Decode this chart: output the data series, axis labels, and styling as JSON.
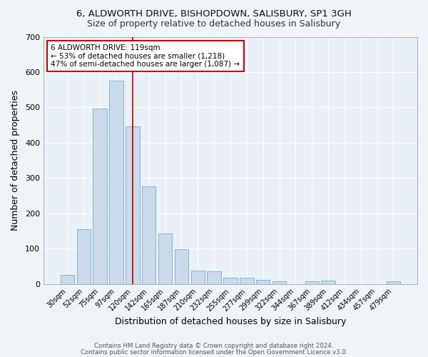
{
  "title1": "6, ALDWORTH DRIVE, BISHOPDOWN, SALISBURY, SP1 3GH",
  "title2": "Size of property relative to detached houses in Salisbury",
  "xlabel": "Distribution of detached houses by size in Salisbury",
  "ylabel": "Number of detached properties",
  "bar_labels": [
    "30sqm",
    "52sqm",
    "75sqm",
    "97sqm",
    "120sqm",
    "142sqm",
    "165sqm",
    "187sqm",
    "210sqm",
    "232sqm",
    "255sqm",
    "277sqm",
    "299sqm",
    "322sqm",
    "344sqm",
    "367sqm",
    "389sqm",
    "412sqm",
    "434sqm",
    "457sqm",
    "479sqm"
  ],
  "bar_heights": [
    25,
    155,
    497,
    575,
    447,
    277,
    143,
    98,
    38,
    35,
    17,
    17,
    11,
    8,
    0,
    8,
    10,
    0,
    0,
    0,
    8
  ],
  "bar_color": "#c9daea",
  "bar_edgecolor": "#7aaac8",
  "vline_x_index": 4,
  "vline_color": "#aa0000",
  "annotation_line1": "6 ALDWORTH DRIVE: 119sqm",
  "annotation_line2": "← 53% of detached houses are smaller (1,218)",
  "annotation_line3": "47% of semi-detached houses are larger (1,087) →",
  "annotation_box_color": "#ffffff",
  "annotation_border_color": "#cc0000",
  "ylim": [
    0,
    700
  ],
  "yticks": [
    0,
    100,
    200,
    300,
    400,
    500,
    600,
    700
  ],
  "bg_color": "#f0f4f8",
  "plot_bg_color": "#eaf0f7",
  "footer1": "Contains HM Land Registry data © Crown copyright and database right 2024.",
  "footer2": "Contains public sector information licensed under the Open Government Licence v3.0.",
  "title_fontsize": 9.5,
  "subtitle_fontsize": 9
}
